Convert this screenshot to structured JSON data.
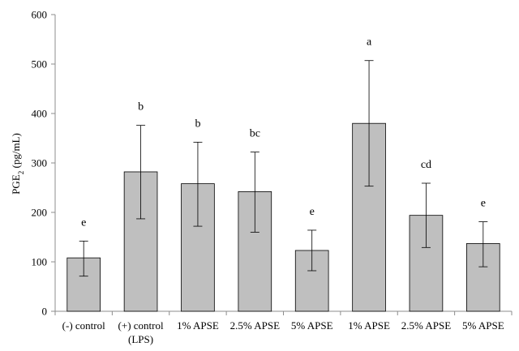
{
  "chart_data": {
    "type": "bar",
    "categories": [
      [
        "(-) control"
      ],
      [
        "(+) control",
        "(LPS)"
      ],
      [
        "1% APSE"
      ],
      [
        "2.5% APSE"
      ],
      [
        "5% APSE"
      ],
      [
        "1% APSE"
      ],
      [
        "2.5% APSE"
      ],
      [
        "5% APSE"
      ]
    ],
    "values": [
      108,
      282,
      258,
      242,
      123,
      380,
      194,
      137
    ],
    "error_upper": [
      142,
      376,
      342,
      322,
      164,
      507,
      259,
      181
    ],
    "error_lower": [
      71,
      187,
      172,
      160,
      82,
      253,
      129,
      90
    ],
    "significance": [
      "e",
      "b",
      "b",
      "bc",
      "e",
      "a",
      "cd",
      "e"
    ],
    "ylabel": {
      "main": "PGE",
      "sub": "2",
      "unit": " (pg/mL)"
    },
    "ylim": [
      0,
      600
    ],
    "yticks": [
      0,
      100,
      200,
      300,
      400,
      500,
      600
    ],
    "grid": false,
    "bar_color": "#bfbfbf",
    "axis_color": "#8c8c8c"
  }
}
